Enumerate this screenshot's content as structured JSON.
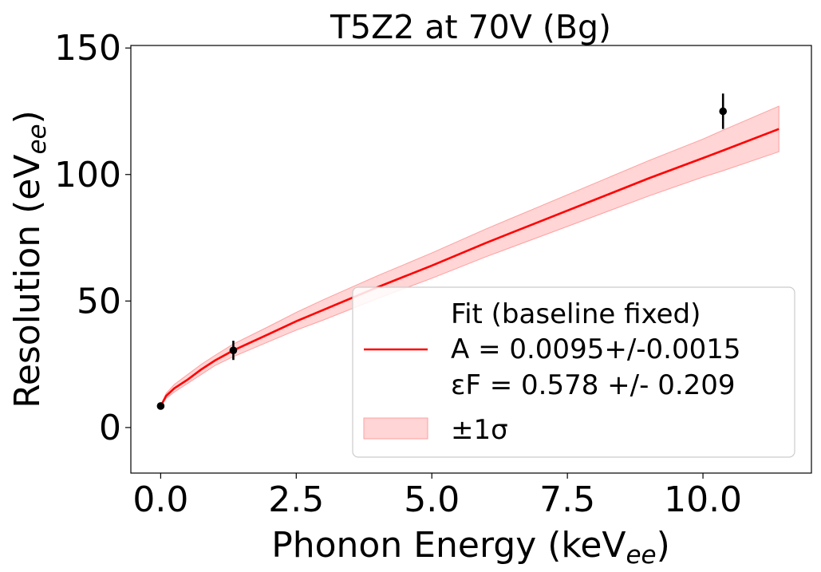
{
  "chart_data": {
    "type": "line",
    "title": "T5Z2 at 70V (Bg)",
    "xlabel": "Phonon Energy (keV",
    "xlabel_sub": "ee",
    "xlabel_end": ")",
    "ylabel": "Resolution (eV",
    "ylabel_sub": "ee",
    "ylabel_end": ")",
    "xlim": [
      -0.55,
      12.0
    ],
    "ylim": [
      -18,
      151
    ],
    "xticks": [
      0.0,
      2.5,
      5.0,
      7.5,
      10.0
    ],
    "xtick_labels": [
      "0.0",
      "2.5",
      "5.0",
      "7.5",
      "10.0"
    ],
    "yticks": [
      0,
      50,
      100,
      150
    ],
    "ytick_labels": [
      "0",
      "50",
      "100",
      "150"
    ],
    "grid": false,
    "legend_position": "lower-right",
    "fit": {
      "color": "#ff0000",
      "curve": [
        {
          "x": 0.0,
          "y": 8.5
        },
        {
          "x": 0.1,
          "y": 12.5
        },
        {
          "x": 0.25,
          "y": 15.5
        },
        {
          "x": 0.5,
          "y": 19.0
        },
        {
          "x": 0.75,
          "y": 23.0
        },
        {
          "x": 1.0,
          "y": 26.5
        },
        {
          "x": 1.34,
          "y": 30.5
        },
        {
          "x": 2.0,
          "y": 37.0
        },
        {
          "x": 2.5,
          "y": 42.0
        },
        {
          "x": 3.0,
          "y": 46.5
        },
        {
          "x": 4.0,
          "y": 55.5
        },
        {
          "x": 5.0,
          "y": 64.0
        },
        {
          "x": 6.0,
          "y": 73.0
        },
        {
          "x": 7.0,
          "y": 81.5
        },
        {
          "x": 8.0,
          "y": 90.0
        },
        {
          "x": 9.0,
          "y": 98.5
        },
        {
          "x": 10.0,
          "y": 106.5
        },
        {
          "x": 10.37,
          "y": 109.5
        },
        {
          "x": 11.4,
          "y": 118.0
        }
      ],
      "band_color": "#ffb3b3",
      "band": [
        {
          "x": 0.0,
          "lo": 8.5,
          "hi": 8.5
        },
        {
          "x": 0.1,
          "lo": 11.5,
          "hi": 13.5
        },
        {
          "x": 0.25,
          "lo": 14.0,
          "hi": 17.0
        },
        {
          "x": 0.5,
          "lo": 17.5,
          "hi": 21.0
        },
        {
          "x": 0.75,
          "lo": 21.0,
          "hi": 25.0
        },
        {
          "x": 1.0,
          "lo": 24.5,
          "hi": 28.5
        },
        {
          "x": 1.34,
          "lo": 28.0,
          "hi": 33.0
        },
        {
          "x": 2.0,
          "lo": 34.0,
          "hi": 40.0
        },
        {
          "x": 2.5,
          "lo": 38.5,
          "hi": 45.5
        },
        {
          "x": 3.0,
          "lo": 42.5,
          "hi": 50.5
        },
        {
          "x": 4.0,
          "lo": 51.0,
          "hi": 60.0
        },
        {
          "x": 5.0,
          "lo": 59.0,
          "hi": 69.0
        },
        {
          "x": 6.0,
          "lo": 67.5,
          "hi": 78.5
        },
        {
          "x": 7.0,
          "lo": 75.5,
          "hi": 87.5
        },
        {
          "x": 8.0,
          "lo": 83.5,
          "hi": 96.5
        },
        {
          "x": 9.0,
          "lo": 91.5,
          "hi": 105.5
        },
        {
          "x": 10.0,
          "lo": 99.0,
          "hi": 114.0
        },
        {
          "x": 10.37,
          "lo": 101.5,
          "hi": 117.5
        },
        {
          "x": 11.4,
          "lo": 109.0,
          "hi": 127.0
        }
      ]
    },
    "data_points": [
      {
        "x": 0.0,
        "y": 8.5,
        "err": 0.8
      },
      {
        "x": 1.34,
        "y": 30.5,
        "err": 3.8
      },
      {
        "x": 10.37,
        "y": 125.0,
        "err": 7.0
      }
    ],
    "legend": {
      "fit_line1": "Fit (baseline fixed)",
      "fit_line2": "A = 0.0095+/-0.0015",
      "fit_line3": "εF = 0.578 +/- 0.209",
      "band_label": "±1σ"
    }
  }
}
